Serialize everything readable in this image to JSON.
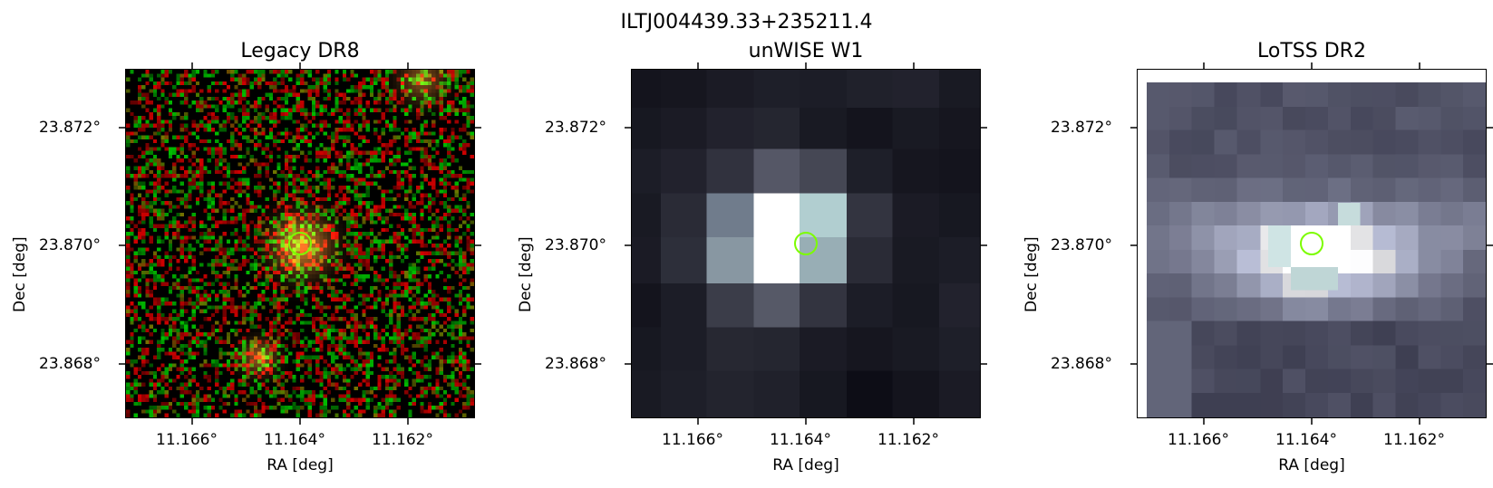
{
  "figure": {
    "title": "ILTJ004439.33+235211.4",
    "marker_color": "#7CFC00"
  },
  "panels": [
    {
      "title": "Legacy DR8",
      "xlabel": "RA [deg]",
      "ylabel": "Dec [deg]",
      "xticks": [
        "11.166°",
        "11.164°",
        "11.162°"
      ],
      "yticks": [
        "23.872°",
        "23.870°",
        "23.868°"
      ]
    },
    {
      "title": "unWISE W1",
      "xlabel": "RA [deg]",
      "ylabel": "Dec [deg]",
      "xticks": [
        "11.166°",
        "11.164°",
        "11.162°"
      ],
      "yticks": [
        "23.872°",
        "23.870°",
        "23.868°"
      ]
    },
    {
      "title": "LoTSS DR2",
      "xlabel": "RA [deg]",
      "ylabel": "Dec [deg]",
      "xticks": [
        "11.166°",
        "11.164°",
        "11.162°"
      ],
      "yticks": [
        "23.872°",
        "23.870°",
        "23.868°"
      ]
    }
  ]
}
